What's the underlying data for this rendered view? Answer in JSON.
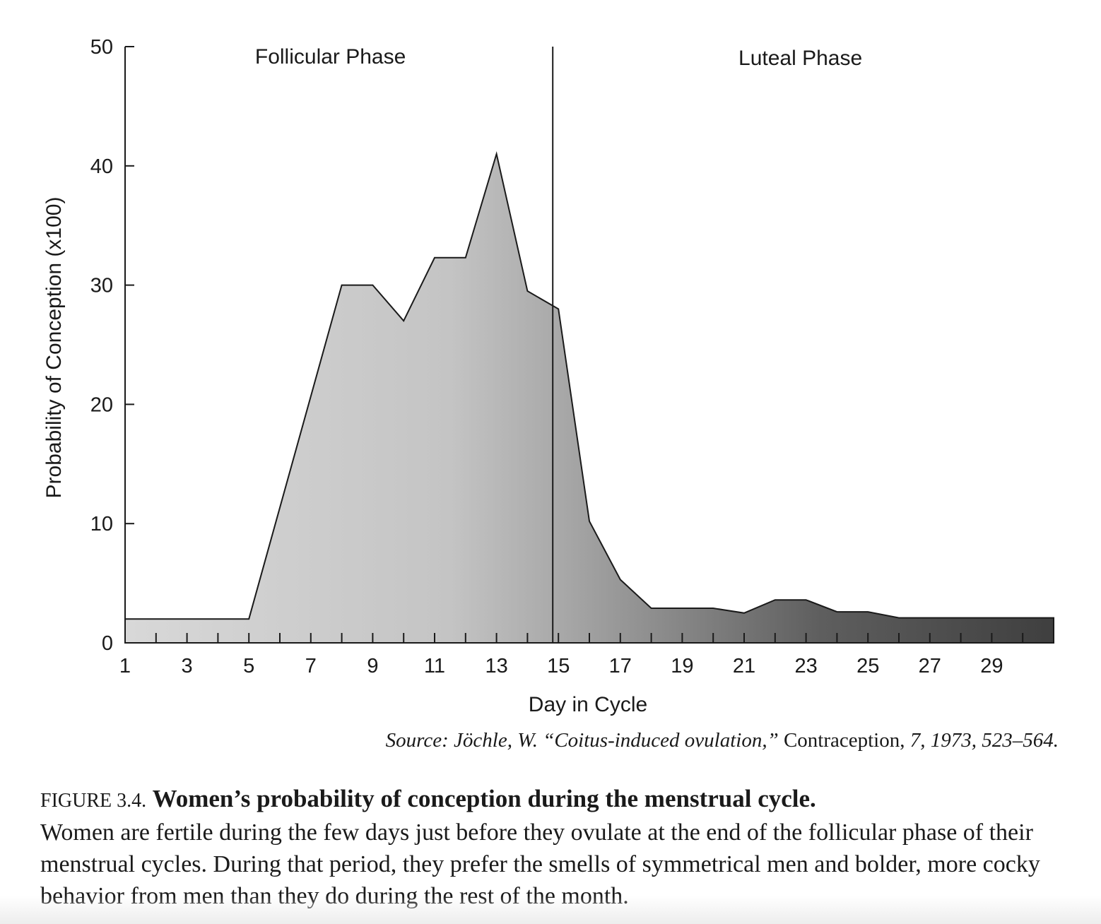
{
  "chart_data": {
    "type": "area",
    "xlabel": "Day in Cycle",
    "ylabel": "Probability of Conception (x100)",
    "xlim": [
      1,
      31
    ],
    "ylim": [
      0,
      50
    ],
    "x_ticks": [
      1,
      3,
      5,
      7,
      9,
      11,
      13,
      15,
      17,
      19,
      21,
      23,
      25,
      27,
      29
    ],
    "y_ticks": [
      0,
      10,
      20,
      30,
      40,
      50
    ],
    "phase_boundary_day": 15,
    "phases": [
      {
        "label": "Follicular Phase"
      },
      {
        "label": "Luteal Phase"
      }
    ],
    "series": [
      {
        "x": [
          1,
          5,
          5,
          8,
          9,
          10,
          11,
          12,
          13,
          14,
          15,
          16,
          17,
          18,
          19,
          20,
          21,
          22,
          23,
          24,
          25,
          26,
          27,
          28,
          29,
          30,
          31
        ],
        "values": [
          2,
          2,
          2,
          30,
          30,
          27,
          32.3,
          32.3,
          41,
          29.5,
          28,
          10.2,
          5.3,
          2.9,
          2.9,
          2.9,
          2.5,
          3.6,
          3.6,
          2.6,
          2.6,
          2.1,
          2.1,
          2.1,
          2.1,
          2.1,
          2.1
        ]
      }
    ],
    "fill_colors": [
      "#d8d8d8",
      "#c4c4c4",
      "#a8a8a8",
      "#5e5e5e",
      "#3f3f3f"
    ],
    "grid": false
  },
  "source": {
    "prefix": "Source: Jöchle, W. “Coitus-induced ovulation,”",
    "journal": " Contraception,",
    "suffix": " 7, 1973, 523–564."
  },
  "caption": {
    "label": "FIGURE 3.4.",
    "title": "Women’s probability of conception during the menstrual cycle.",
    "body": "Women are fertile during the few days just before they ovulate at the end of the follicular phase of their menstrual cycles. During that period, they prefer the smells of symmetrical men and bolder, more cocky behavior from men than they do during the rest of the month."
  }
}
